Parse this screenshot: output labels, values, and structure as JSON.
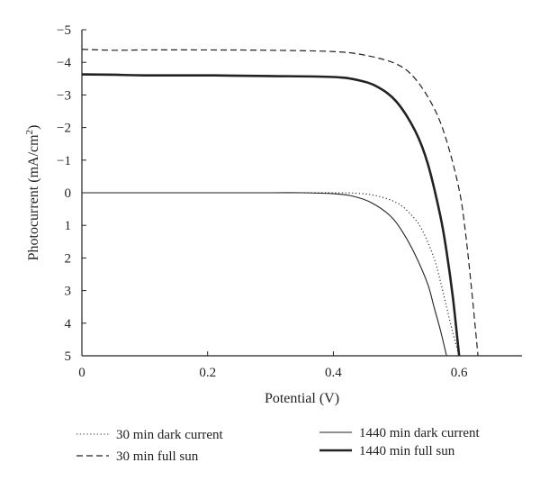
{
  "chart_data": {
    "type": "line",
    "xlabel": "Potential (V)",
    "ylabel_main": "Photocurrent (mA/cm",
    "ylabel_sup": "2",
    "ylabel_close": ")",
    "xlim": [
      0,
      0.7
    ],
    "ylim": [
      -5,
      5
    ],
    "y_inverted": true,
    "grid": false,
    "legend_position": "bottom",
    "xticks": [
      {
        "value": 0,
        "label": "0"
      },
      {
        "value": 0.2,
        "label": "0.2"
      },
      {
        "value": 0.4,
        "label": "0.4"
      },
      {
        "value": 0.6,
        "label": "0.6"
      }
    ],
    "yticks": [
      {
        "value": -5,
        "label": "−5"
      },
      {
        "value": -4,
        "label": "−4"
      },
      {
        "value": -3,
        "label": "−3"
      },
      {
        "value": -2,
        "label": "−2"
      },
      {
        "value": -1,
        "label": "−1"
      },
      {
        "value": 0,
        "label": "0"
      },
      {
        "value": 1,
        "label": "1"
      },
      {
        "value": 2,
        "label": "2"
      },
      {
        "value": 3,
        "label": "3"
      },
      {
        "value": 4,
        "label": "4"
      },
      {
        "value": 5,
        "label": "5"
      }
    ],
    "series": [
      {
        "name": "30 min dark current",
        "style": "dotted",
        "color": "#222222",
        "x": [
          0,
          0.1,
          0.2,
          0.3,
          0.4,
          0.44,
          0.47,
          0.5,
          0.52,
          0.54,
          0.56,
          0.57,
          0.58,
          0.59,
          0.6
        ],
        "y": [
          0,
          0,
          0,
          0,
          0,
          0.02,
          0.1,
          0.3,
          0.6,
          1.1,
          2.0,
          2.7,
          3.5,
          4.3,
          5.0
        ]
      },
      {
        "name": "30 min full sun",
        "style": "dashed",
        "color": "#222222",
        "x": [
          0,
          0.05,
          0.1,
          0.2,
          0.3,
          0.4,
          0.45,
          0.5,
          0.53,
          0.56,
          0.58,
          0.6,
          0.61,
          0.62,
          0.63
        ],
        "y": [
          -4.4,
          -4.37,
          -4.38,
          -4.38,
          -4.37,
          -4.33,
          -4.22,
          -3.95,
          -3.5,
          -2.6,
          -1.6,
          -0.1,
          1.2,
          3.0,
          5.0
        ]
      },
      {
        "name": "1440 min dark current",
        "style": "solid",
        "color": "#222222",
        "x": [
          0,
          0.1,
          0.2,
          0.3,
          0.35,
          0.4,
          0.43,
          0.46,
          0.49,
          0.51,
          0.53,
          0.55,
          0.56,
          0.57,
          0.58
        ],
        "y": [
          0,
          0,
          0,
          0,
          0,
          0.03,
          0.1,
          0.3,
          0.7,
          1.2,
          1.9,
          2.8,
          3.5,
          4.2,
          5.0
        ]
      },
      {
        "name": "1440 min full sun",
        "style": "thick",
        "color": "#222222",
        "x": [
          0,
          0.05,
          0.1,
          0.2,
          0.3,
          0.4,
          0.44,
          0.47,
          0.5,
          0.53,
          0.55,
          0.57,
          0.58,
          0.59,
          0.6
        ],
        "y": [
          -3.63,
          -3.62,
          -3.6,
          -3.6,
          -3.58,
          -3.55,
          -3.45,
          -3.25,
          -2.8,
          -1.9,
          -0.9,
          0.7,
          1.8,
          3.2,
          5.0
        ]
      }
    ]
  }
}
